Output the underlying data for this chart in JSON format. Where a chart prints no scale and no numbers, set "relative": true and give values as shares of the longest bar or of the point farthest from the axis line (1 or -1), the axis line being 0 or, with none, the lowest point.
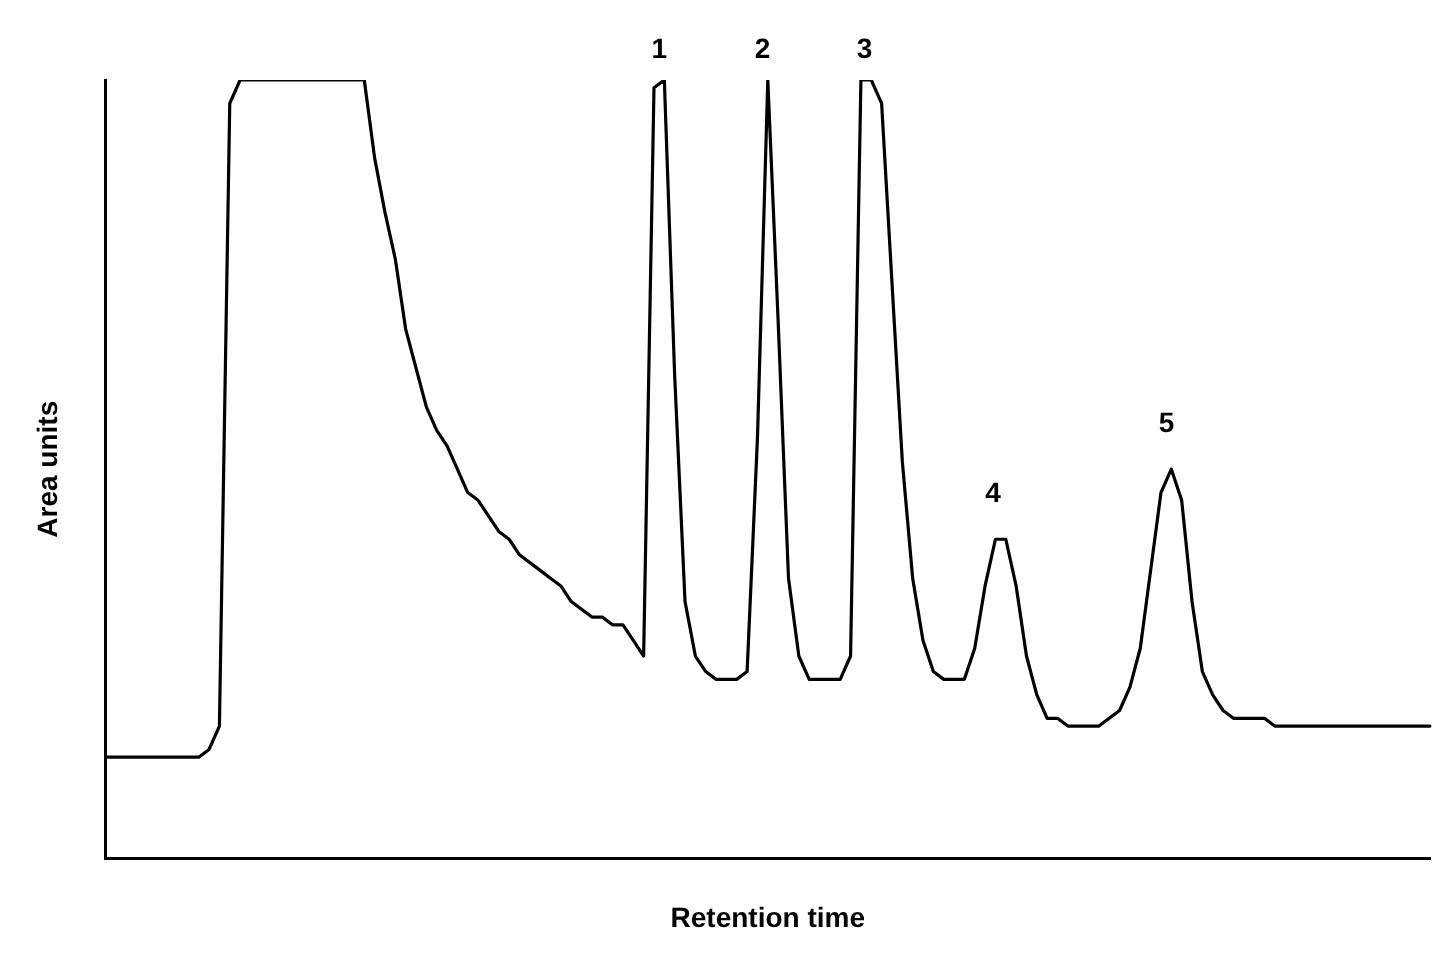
{
  "chart_data": {
    "type": "line",
    "relative": true,
    "xlabel": "Retention time",
    "ylabel": "Area units",
    "legend": false,
    "grid": false,
    "marker": "none",
    "line_style": "solid",
    "tick_labels": false,
    "categories": [
      null,
      null,
      null,
      null,
      null,
      null,
      null,
      null,
      null,
      null,
      null,
      null,
      null,
      null,
      null,
      null,
      null,
      null,
      null,
      null,
      null,
      null,
      null,
      null,
      null,
      null,
      null,
      null,
      null,
      null,
      null,
      null,
      null,
      null,
      null,
      null,
      null,
      null,
      null,
      null,
      null,
      null,
      null,
      null,
      null,
      null,
      null,
      null,
      null,
      null,
      null,
      null,
      null,
      null,
      null,
      null,
      null,
      null,
      null,
      null,
      null,
      null,
      null,
      null,
      null,
      null,
      null,
      null,
      null,
      null,
      null,
      null,
      null,
      null,
      null,
      null,
      null,
      null,
      null,
      null,
      null,
      null,
      null,
      null,
      null,
      null,
      null,
      null,
      null,
      null,
      null,
      null,
      null,
      null,
      null,
      null,
      null,
      null,
      null,
      null,
      null,
      null,
      null,
      null,
      null,
      null,
      null,
      null,
      null,
      null,
      null,
      null,
      null,
      null,
      null,
      null,
      null,
      null,
      null,
      null,
      null,
      null,
      null,
      null,
      null,
      null,
      null,
      null,
      null
    ],
    "annotations": [
      "1",
      "2",
      "3",
      "4",
      "5"
    ],
    "series": [
      {
        "color": "#000000",
        "values": [
          0.13,
          0.13,
          0.13,
          0.13,
          0.13,
          0.13,
          0.13,
          0.13,
          0.13,
          0.13,
          0.14,
          0.17,
          0.97,
          1,
          1,
          1,
          1,
          1,
          1,
          1,
          1,
          1,
          1,
          1,
          1,
          1,
          0.9,
          0.83,
          0.77,
          0.68,
          0.63,
          0.58,
          0.55,
          0.53,
          0.5,
          0.47,
          0.46,
          0.44,
          0.42,
          0.41,
          0.39,
          0.38,
          0.37,
          0.36,
          0.35,
          0.33,
          0.32,
          0.31,
          0.31,
          0.3,
          0.3,
          0.28,
          0.26,
          0.99,
          1,
          0.62,
          0.33,
          0.26,
          0.24,
          0.23,
          0.23,
          0.23,
          0.24,
          0.54,
          1,
          0.69,
          0.36,
          0.26,
          0.23,
          0.23,
          0.23,
          0.23,
          0.26,
          1,
          1,
          0.97,
          0.74,
          0.51,
          0.36,
          0.28,
          0.24,
          0.23,
          0.23,
          0.23,
          0.27,
          0.35,
          0.41,
          0.41,
          0.35,
          0.26,
          0.21,
          0.18,
          0.18,
          0.17,
          0.17,
          0.17,
          0.17,
          0.18,
          0.19,
          0.22,
          0.27,
          0.37,
          0.47,
          0.5,
          0.46,
          0.33,
          0.24,
          0.21,
          0.19,
          0.18,
          0.18,
          0.18,
          0.18,
          0.17,
          0.17,
          0.17,
          0.17,
          0.17,
          0.17,
          0.17,
          0.17,
          0.17,
          0.17,
          0.17,
          0.17,
          0.17,
          0.17,
          0.17,
          0.17
        ]
      }
    ]
  }
}
